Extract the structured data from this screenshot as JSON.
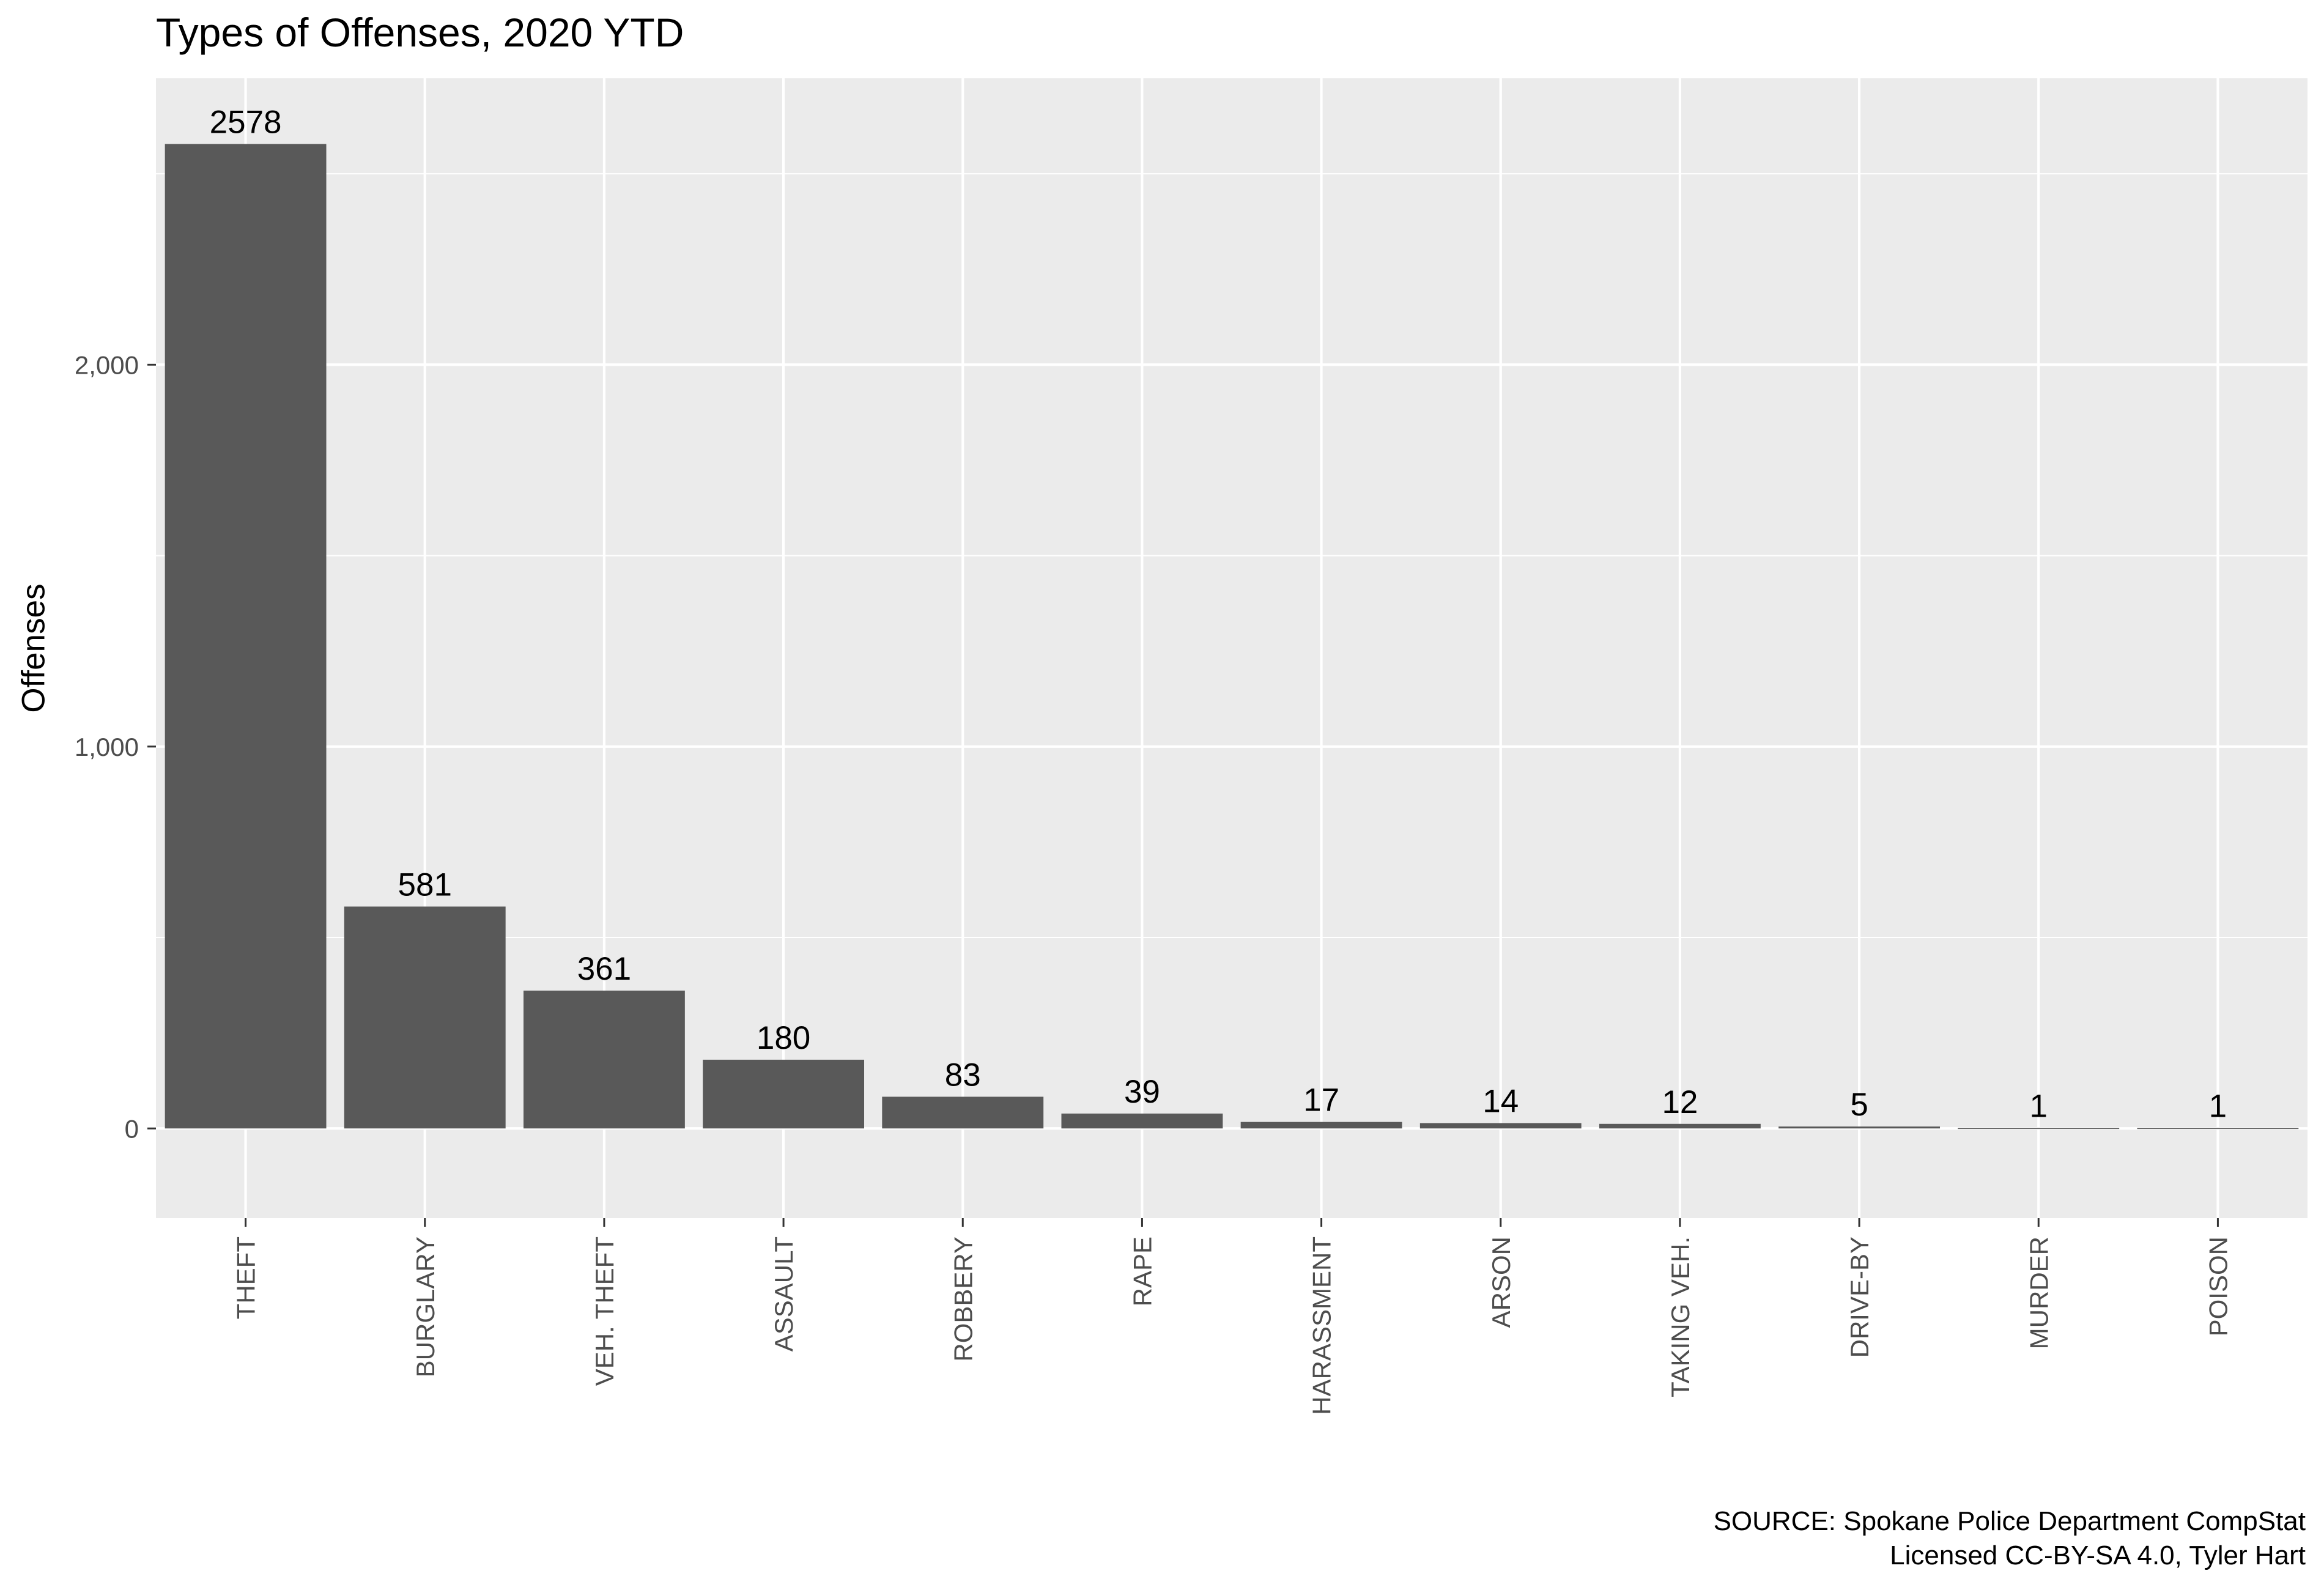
{
  "chart_data": {
    "type": "bar",
    "title": "Types of Offenses, 2020 YTD",
    "xlabel": "",
    "ylabel": "Offenses",
    "categories": [
      "THEFT",
      "BURGLARY",
      "VEH. THEFT",
      "ASSAULT",
      "ROBBERY",
      "RAPE",
      "HARASSMENT",
      "ARSON",
      "TAKING VEH.",
      "DRIVE-BY",
      "MURDER",
      "POISON"
    ],
    "values": [
      2578,
      581,
      361,
      180,
      83,
      39,
      17,
      14,
      12,
      5,
      1,
      1
    ],
    "data_labels": [
      "2578",
      "581",
      "361",
      "180",
      "83",
      "39",
      "17",
      "14",
      "12",
      "5",
      "1",
      "1"
    ],
    "y_ticks": [
      0,
      1000,
      2000
    ],
    "y_tick_labels": [
      "0",
      "1,000",
      "2,000"
    ],
    "ylim": [
      -235,
      2750
    ],
    "grid": true,
    "legend": "none",
    "caption": [
      "SOURCE: Spokane Police Department CompStat",
      "Licensed CC-BY-SA 4.0, Tyler Hart"
    ],
    "colors": {
      "bar": "#595959",
      "panel": "#ebebeb",
      "grid": "#ffffff",
      "axis_text": "#4d4d4d",
      "tick": "#333333",
      "text": "#000000"
    }
  }
}
